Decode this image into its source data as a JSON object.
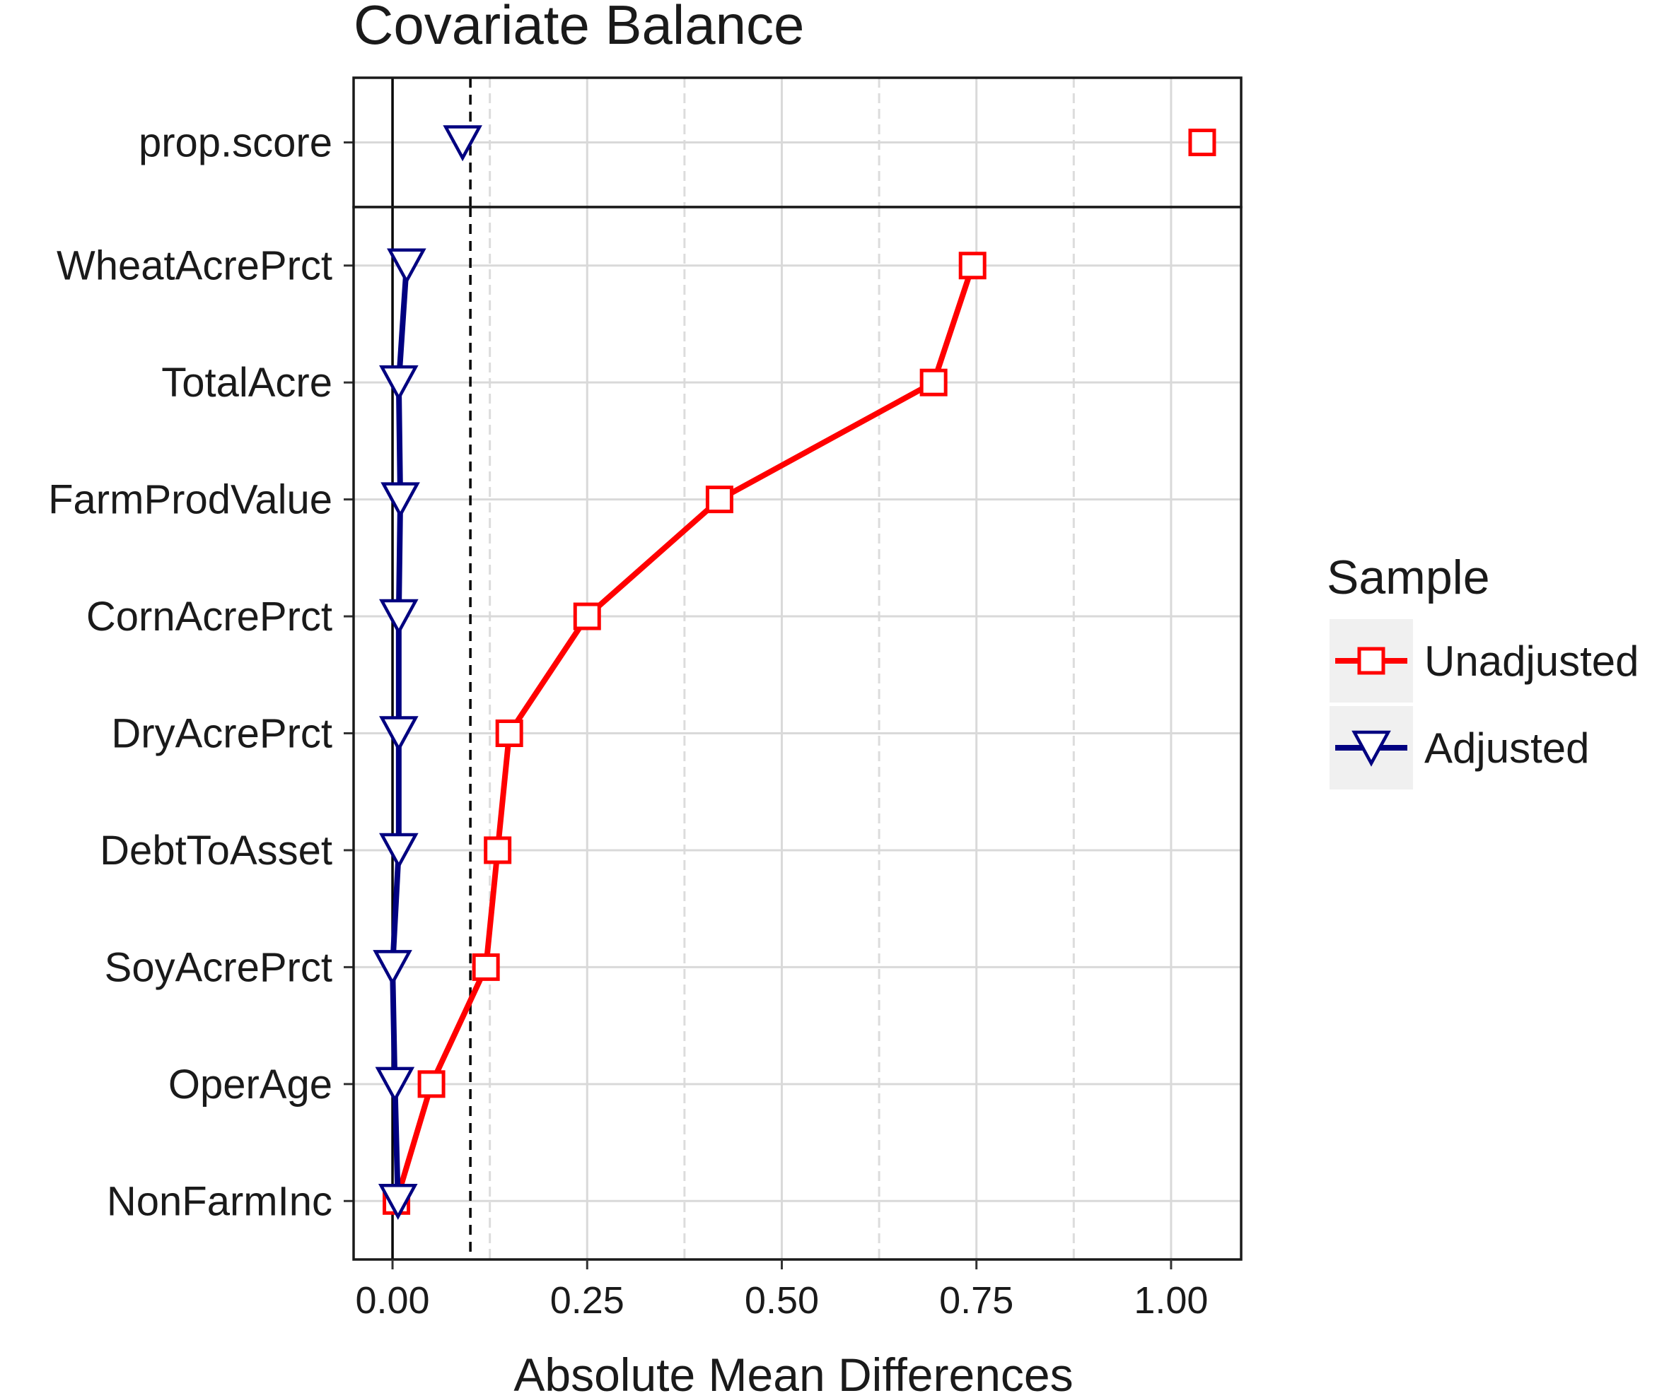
{
  "chart_data": {
    "type": "scatter",
    "title": "Covariate Balance",
    "xlabel": "Absolute Mean Differences",
    "ylabel": "",
    "xlim": [
      -0.05,
      1.09
    ],
    "x_ticks": [
      "0.00",
      "0.25",
      "0.50",
      "0.75",
      "1.00"
    ],
    "x_tick_values": [
      0,
      0.25,
      0.5,
      0.75,
      1.0
    ],
    "threshold": 0.1,
    "grid": true,
    "legend_position": "right",
    "legend_title": "Sample",
    "top_panel": {
      "categories": [
        "prop.score"
      ],
      "series": [
        {
          "name": "Unadjusted",
          "color": "#ff0000",
          "marker": "square",
          "values": [
            1.04
          ]
        },
        {
          "name": "Adjusted",
          "color": "#000080",
          "marker": "triangle-down",
          "values": [
            0.09
          ]
        }
      ]
    },
    "bottom_panel": {
      "categories": [
        "WheatAcrePrct",
        "TotalAcre",
        "FarmProdValue",
        "CornAcrePrct",
        "DryAcrePrct",
        "DebtToAsset",
        "SoyAcrePrct",
        "OperAge",
        "NonFarmInc"
      ],
      "series": [
        {
          "name": "Unadjusted",
          "color": "#ff0000",
          "marker": "square",
          "values": [
            0.745,
            0.695,
            0.42,
            0.25,
            0.15,
            0.135,
            0.12,
            0.05,
            0.005
          ]
        },
        {
          "name": "Adjusted",
          "color": "#000080",
          "marker": "triangle-down",
          "values": [
            0.018,
            0.008,
            0.01,
            0.008,
            0.008,
            0.008,
            0.0,
            0.003,
            0.007
          ]
        }
      ]
    }
  }
}
